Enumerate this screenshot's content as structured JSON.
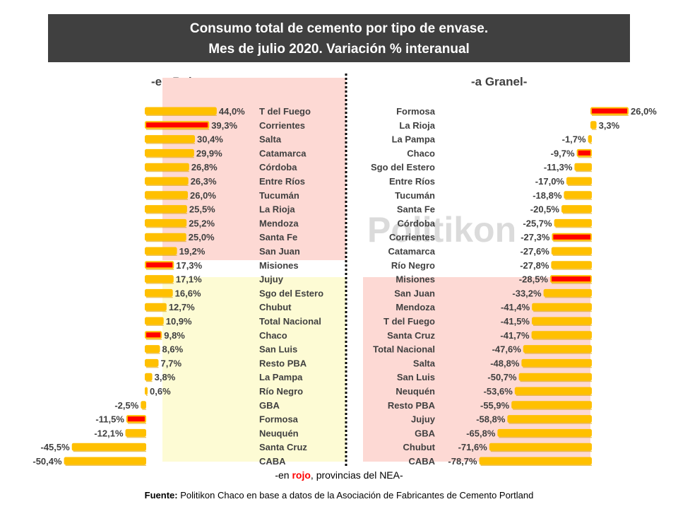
{
  "title_line1": "Consumo total de cemento por tipo de envase.",
  "title_line2": "Mes de julio 2020. Variación % interanual",
  "note": {
    "prefix": "-en ",
    "highlight": "rojo",
    "suffix": ", provincias del NEA-"
  },
  "source": {
    "label": "Fuente:",
    "text": " Politikon Chaco en base a datos de la Asociación de Fabricantes de Cemento Portland"
  },
  "watermark": "Politikon",
  "colors": {
    "bar_fill": "#ffc000",
    "bar_edge": "#e0a000",
    "highlight": "#ff0000",
    "pink_bg": "#fdd9d4",
    "yellow_bg": "#fdfbd4",
    "label": "#404040"
  },
  "chart_data": [
    {
      "type": "bar",
      "orientation": "horizontal",
      "title": "-en Bolsa-",
      "categories": [
        "T del Fuego",
        "Corrientes",
        "Salta",
        "Catamarca",
        "Córdoba",
        "Entre Ríos",
        "Tucumán",
        "La Rioja",
        "Mendoza",
        "Santa Fe",
        "San Juan",
        "Misiones",
        "Jujuy",
        "Sgo del Estero",
        "Chubut",
        "Total Nacional",
        "Chaco",
        "San Luis",
        "Resto PBA",
        "La Pampa",
        "Río Negro",
        "GBA",
        "Formosa",
        "Neuquén",
        "Santa Cruz",
        "CABA"
      ],
      "values": [
        44.0,
        39.3,
        30.4,
        29.9,
        26.8,
        26.3,
        26.0,
        25.5,
        25.2,
        25.0,
        19.2,
        17.3,
        17.1,
        16.6,
        12.7,
        10.9,
        9.8,
        8.6,
        7.7,
        3.8,
        0.6,
        -2.5,
        -11.5,
        -12.1,
        -45.5,
        -50.4
      ],
      "value_labels": [
        "44,0%",
        "39,3%",
        "30,4%",
        "29,9%",
        "26,8%",
        "26,3%",
        "26,0%",
        "25,5%",
        "25,2%",
        "25,0%",
        "19,2%",
        "17,3%",
        "17,1%",
        "16,6%",
        "12,7%",
        "10,9%",
        "9,8%",
        "8,6%",
        "7,7%",
        "3,8%",
        "0,6%",
        "-2,5%",
        "-11,5%",
        "-12,1%",
        "-45,5%",
        "-50,4%"
      ],
      "highlighted": [
        "Corrientes",
        "Misiones",
        "Chaco",
        "Formosa"
      ]
    },
    {
      "type": "bar",
      "orientation": "horizontal",
      "title": "-a Granel-",
      "categories": [
        "Formosa",
        "La Rioja",
        "La Pampa",
        "Chaco",
        "Sgo del Estero",
        "Entre Ríos",
        "Tucumán",
        "Santa Fe",
        "Córdoba",
        "Corrientes",
        "Catamarca",
        "Río Negro",
        "Misiones",
        "San Juan",
        "Mendoza",
        "T del Fuego",
        "Santa Cruz",
        "Total Nacional",
        "Salta",
        "San Luis",
        "Neuquén",
        "Resto PBA",
        "Jujuy",
        "GBA",
        "Chubut",
        "CABA"
      ],
      "values": [
        26.0,
        3.3,
        -1.7,
        -9.7,
        -11.3,
        -17.0,
        -18.8,
        -20.5,
        -25.7,
        -27.3,
        -27.6,
        -27.8,
        -28.5,
        -33.2,
        -41.4,
        -41.5,
        -41.7,
        -47.6,
        -48.8,
        -50.7,
        -53.6,
        -55.9,
        -58.8,
        -65.8,
        -71.6,
        -78.7
      ],
      "value_labels": [
        "26,0%",
        "3,3%",
        "-1,7%",
        "-9,7%",
        "-11,3%",
        "-17,0%",
        "-18,8%",
        "-20,5%",
        "-25,7%",
        "-27,3%",
        "-27,6%",
        "-27,8%",
        "-28,5%",
        "-33,2%",
        "-41,4%",
        "-41,5%",
        "-41,7%",
        "-47,6%",
        "-48,8%",
        "-50,7%",
        "-53,6%",
        "-55,9%",
        "-58,8%",
        "-65,8%",
        "-71,6%",
        "-78,7%"
      ],
      "highlighted": [
        "Formosa",
        "Chaco",
        "Corrientes",
        "Misiones"
      ]
    }
  ]
}
